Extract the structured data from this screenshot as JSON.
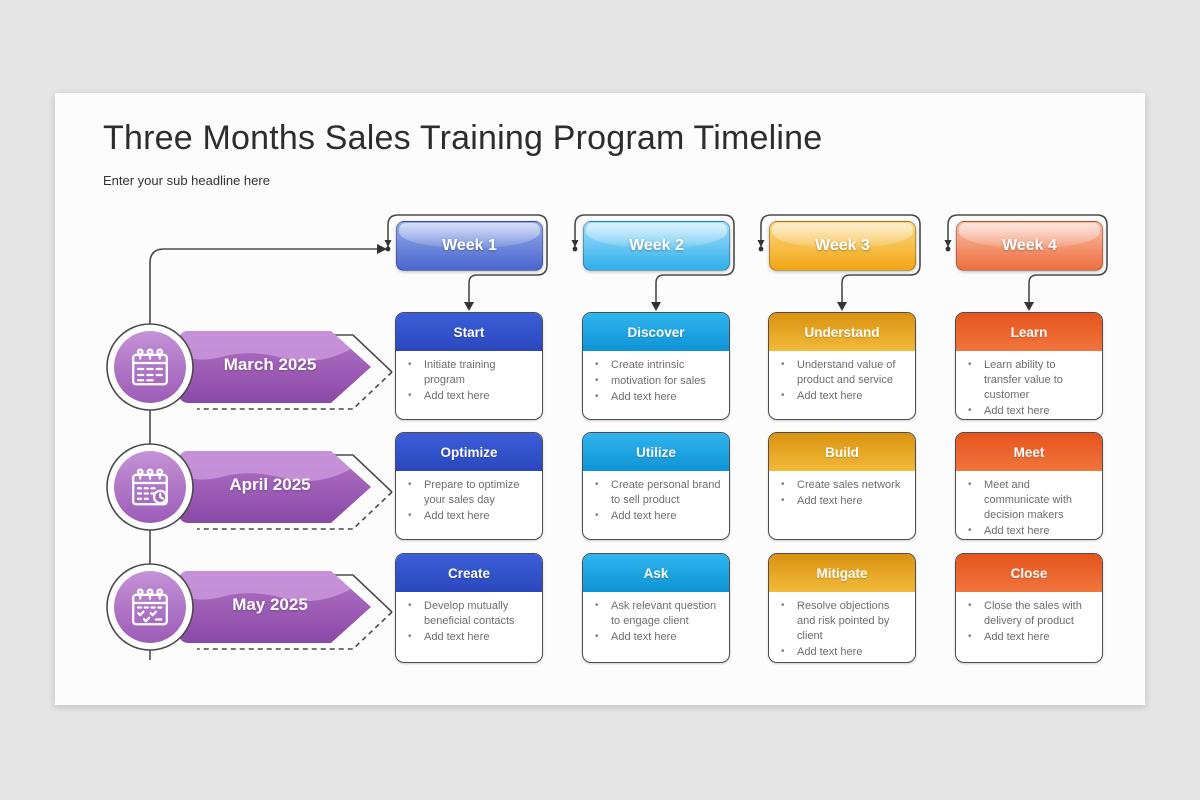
{
  "slide": {
    "title": "Three Months Sales Training Program Timeline",
    "subtitle": "Enter your sub headline here",
    "background": "#fcfcfc",
    "page_background": "#e7e6e7"
  },
  "timeline": {
    "months": [
      {
        "label": "March 2025",
        "icon": "calendar-rings-icon"
      },
      {
        "label": "April 2025",
        "icon": "calendar-clock-icon"
      },
      {
        "label": "May 2025",
        "icon": "calendar-check-icon"
      }
    ],
    "colors": {
      "ribbon_top": "#b274c6",
      "ribbon_bottom": "#8b49a8",
      "ribbon_wave": "#c997db",
      "circle_top": "#c492d6",
      "circle_bottom": "#9c5cb8",
      "outline": "#4a4a4a"
    }
  },
  "weeks": [
    {
      "label": "Week 1",
      "colors": {
        "button_top": "#93abe9",
        "button_bottom": "#4a66cf",
        "bar_top": "#3b5fd9",
        "bar_bottom": "#2b47bd"
      },
      "cards": [
        {
          "title": "Start",
          "bullets": [
            "Initiate training program",
            "Add text here"
          ]
        },
        {
          "title": "Optimize",
          "bullets": [
            "Prepare to optimize your sales day",
            "Add text here"
          ]
        },
        {
          "title": "Create",
          "bullets": [
            "Develop mutually beneficial contacts",
            "Add text here"
          ]
        }
      ]
    },
    {
      "label": "Week 2",
      "colors": {
        "button_top": "#a4e0f9",
        "button_bottom": "#2fb0ec",
        "bar_top": "#31b5ef",
        "bar_bottom": "#0e93d5"
      },
      "cards": [
        {
          "title": "Discover",
          "bullets": [
            "Create intrinsic",
            "motivation for sales",
            "Add text here"
          ]
        },
        {
          "title": "Utilize",
          "bullets": [
            "Create personal brand to sell product",
            "Add text here"
          ]
        },
        {
          "title": "Ask",
          "bullets": [
            "Ask relevant question to engage client",
            "Add text here"
          ]
        }
      ]
    },
    {
      "label": "Week 3",
      "colors": {
        "button_top": "#fbd983",
        "button_bottom": "#f2a513",
        "bar_top": "#da9210",
        "bar_bottom": "#f2ba3a"
      },
      "cards": [
        {
          "title": "Understand",
          "bullets": [
            "Understand value of product and service",
            "Add text here"
          ]
        },
        {
          "title": "Build",
          "bullets": [
            "Create sales network",
            "Add text here"
          ]
        },
        {
          "title": "Mitigate",
          "bullets": [
            "Resolve objections and risk pointed by client",
            "Add text here"
          ]
        }
      ]
    },
    {
      "label": "Week 4",
      "colors": {
        "button_top": "#f9bda6",
        "button_bottom": "#ee6f3e",
        "bar_top": "#e6541d",
        "bar_bottom": "#f0753d"
      },
      "cards": [
        {
          "title": "Learn",
          "bullets": [
            "Learn ability to transfer value to customer",
            "Add text here"
          ]
        },
        {
          "title": "Meet",
          "bullets": [
            "Meet and communicate with decision makers",
            "Add text here"
          ]
        },
        {
          "title": "Close",
          "bullets": [
            "Close the sales with delivery of product",
            "Add text here"
          ]
        }
      ]
    }
  ]
}
